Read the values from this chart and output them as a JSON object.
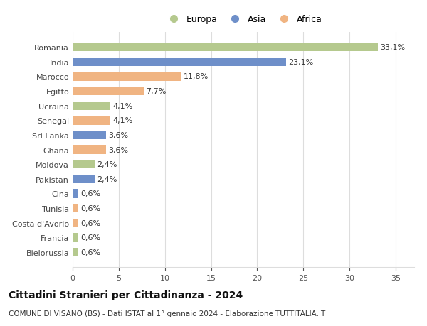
{
  "categories": [
    "Bielorussia",
    "Francia",
    "Costa d'Avorio",
    "Tunisia",
    "Cina",
    "Pakistan",
    "Moldova",
    "Ghana",
    "Sri Lanka",
    "Senegal",
    "Ucraina",
    "Egitto",
    "Marocco",
    "India",
    "Romania"
  ],
  "values": [
    0.6,
    0.6,
    0.6,
    0.6,
    0.6,
    2.4,
    2.4,
    3.6,
    3.6,
    4.1,
    4.1,
    7.7,
    11.8,
    23.1,
    33.1
  ],
  "labels": [
    "0,6%",
    "0,6%",
    "0,6%",
    "0,6%",
    "0,6%",
    "2,4%",
    "2,4%",
    "3,6%",
    "3,6%",
    "4,1%",
    "4,1%",
    "7,7%",
    "11,8%",
    "23,1%",
    "33,1%"
  ],
  "colors": [
    "#b5c98e",
    "#b5c98e",
    "#f0b482",
    "#f0b482",
    "#6e8fc9",
    "#6e8fc9",
    "#b5c98e",
    "#f0b482",
    "#6e8fc9",
    "#f0b482",
    "#b5c98e",
    "#f0b482",
    "#f0b482",
    "#6e8fc9",
    "#b5c98e"
  ],
  "legend": [
    {
      "label": "Europa",
      "color": "#b5c98e"
    },
    {
      "label": "Asia",
      "color": "#6e8fc9"
    },
    {
      "label": "Africa",
      "color": "#f0b482"
    }
  ],
  "xlim": [
    0,
    37
  ],
  "xticks": [
    0,
    5,
    10,
    15,
    20,
    25,
    30,
    35
  ],
  "title1": "Cittadini Stranieri per Cittadinanza - 2024",
  "title2": "COMUNE DI VISANO (BS) - Dati ISTAT al 1° gennaio 2024 - Elaborazione TUTTITALIA.IT",
  "bg_color": "#ffffff",
  "plot_bg_color": "#ffffff",
  "grid_color": "#dddddd",
  "bar_height": 0.6,
  "label_fontsize": 8,
  "tick_fontsize": 8,
  "legend_fontsize": 9,
  "title1_fontsize": 10,
  "title2_fontsize": 7.5
}
